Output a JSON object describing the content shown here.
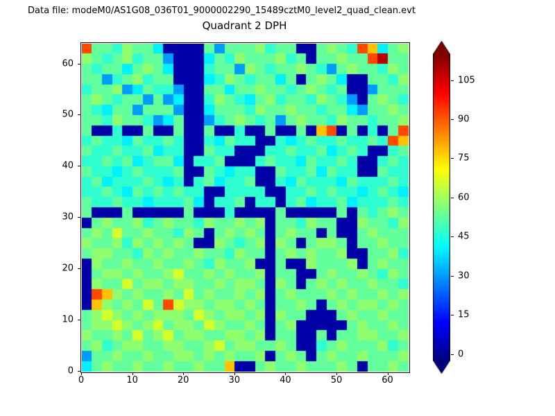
{
  "header": {
    "data_file_label": "Data file: modeM0/AS1G08_036T01_9000002290_15489cztM0_level2_quad_clean.evt"
  },
  "chart_data": {
    "type": "heatmap",
    "title": "Quadrant 2 DPH",
    "xlabel": "",
    "ylabel": "",
    "x_range": [
      0,
      64
    ],
    "y_range": [
      0,
      64
    ],
    "xticks": [
      0,
      10,
      20,
      30,
      40,
      50,
      60
    ],
    "yticks": [
      0,
      10,
      20,
      30,
      40,
      50,
      60
    ],
    "colormap": "jet",
    "color_range": [
      -2.5,
      115
    ],
    "colorbar_ticks": [
      0,
      15,
      30,
      45,
      60,
      75,
      90,
      105
    ],
    "colorbar_extend": "both",
    "colorbar_under_color": "#000080",
    "colorbar_over_color": "#800000",
    "grid_resolution": 32,
    "value_map": {
      "0": 2,
      "1": 18,
      "2": 30,
      "3": 40,
      "4": 47,
      "5": 53,
      "6": 58,
      "7": 66,
      "8": 78,
      "9": 92,
      "A": 108
    },
    "rows_top_to_bottom": [
      "95546553000052555645500565498356",
      "65456455200035465556450556559A55",
      "54553565300045526545565425655465",
      "55245645500034654553505653005546",
      "45562354420055355655456545002555",
      "56545525230046543564554654205654",
      "54355255520035554655655455325565",
      "55465542350024565452565546554556",
      "50040050050050040050050890504059",
      "45443544540043544004345445445498",
      "54454453440054400044544534540045",
      "44545345530445000454435445400454",
      "54434544450054344005445354400544",
      "45344454340453445004354443544454",
      "44543545454400444400445454434543",
      "54454434445304450440453445344454",
      "50005000005000400005000005054565",
      "05655645655465565605546550065546",
      "56575565546505656505655050056555",
      "65564656565006545606505665055655",
      "56655465655655465505656556005564",
      "06556556556546556005006555605655",
      "05665655675565655605500565565465",
      "06557566566556566506505656556554",
      "09865655657565565605655565655656",
      "08656575976656656505565056566565",
      "56765656665765665606550005655655",
      "56676567566576556505600000565565",
      "65565756756655665605500505566556",
      "56456655665567566556500456555645",
      "25565565566565655605650565565556",
      "35655655655655800565565556505565"
    ]
  }
}
